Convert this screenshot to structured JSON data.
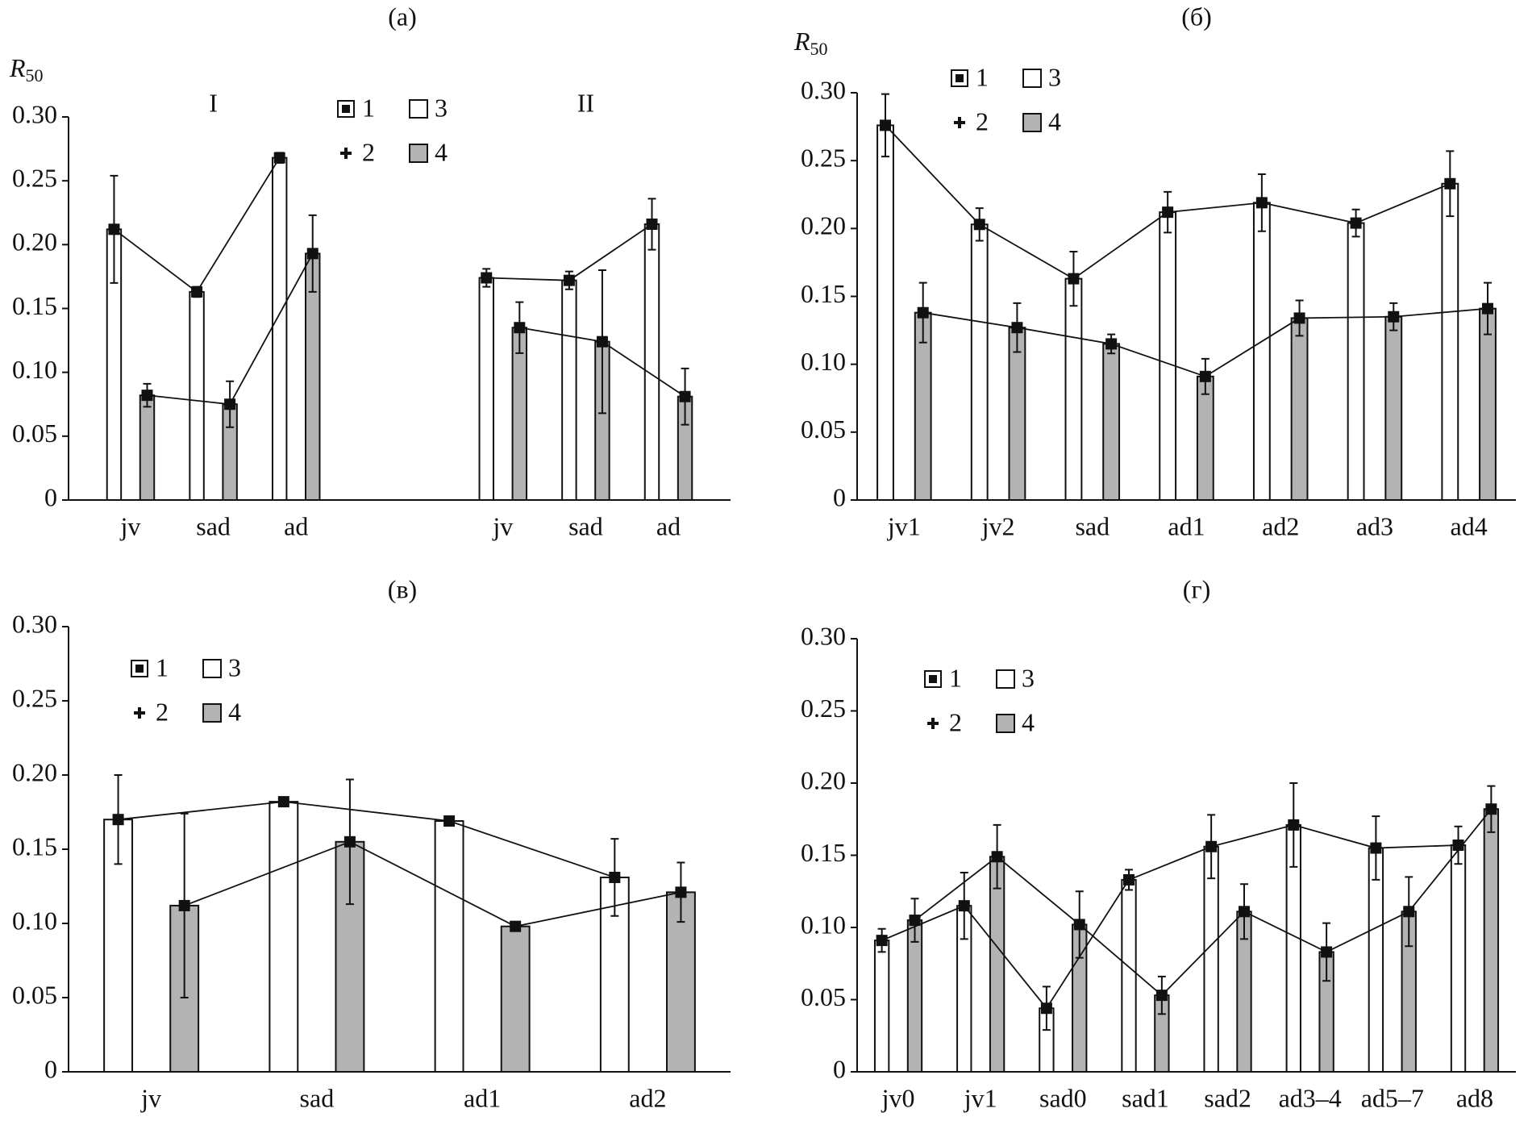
{
  "chart_data": [
    {
      "type": "bar",
      "title": "(a)",
      "ylabel": "R",
      "ylabel_sub": "50",
      "ylim": [
        0,
        0.3
      ],
      "yticks": [
        0,
        0.05,
        {
          "value": 0.1,
          "label": "0.10"
        },
        0.15,
        {
          "value": 0.2,
          "label": "0.20"
        },
        0.25,
        {
          "value": 0.3,
          "label": "0.30"
        }
      ],
      "series": [
        {
          "name": "3",
          "line_name": "1",
          "color": "#ffffff"
        },
        {
          "name": "4",
          "line_name": "2",
          "color": "#b3b3b3"
        }
      ],
      "groups": [
        {
          "label": "I",
          "categories": [
            "jv",
            "sad",
            "ad"
          ],
          "series": [
            {
              "values": [
                0.212,
                0.163,
                0.268
              ],
              "errors": [
                0.042,
                0.004,
                0.004
              ]
            },
            {
              "values": [
                0.082,
                0.075,
                0.193
              ],
              "errors": [
                0.009,
                0.018,
                0.03
              ]
            }
          ]
        },
        {
          "label": "II",
          "categories": [
            "jv",
            "sad",
            "ad"
          ],
          "series": [
            {
              "values": [
                0.174,
                0.172,
                0.216
              ],
              "errors": [
                0.007,
                0.007,
                0.02
              ]
            },
            {
              "values": [
                0.135,
                0.124,
                0.081
              ],
              "errors": [
                0.02,
                0.056,
                0.022
              ]
            }
          ]
        }
      ]
    },
    {
      "type": "bar",
      "title": "(б)",
      "ylabel": "R",
      "ylabel_sub": "50",
      "ylim": [
        0,
        0.3
      ],
      "yticks": [
        0,
        0.05,
        {
          "value": 0.1,
          "label": "0.10"
        },
        0.15,
        {
          "value": 0.2,
          "label": "0.20"
        },
        0.25,
        {
          "value": 0.3,
          "label": "0.30"
        }
      ],
      "series": [
        {
          "name": "3",
          "line_name": "1",
          "color": "#ffffff"
        },
        {
          "name": "4",
          "line_name": "2",
          "color": "#b3b3b3"
        }
      ],
      "groups": [
        {
          "categories": [
            "jv1",
            "jv2",
            "sad",
            "ad1",
            "ad2",
            "ad3",
            "ad4"
          ],
          "series": [
            {
              "values": [
                0.276,
                0.203,
                0.163,
                0.212,
                0.219,
                0.204,
                0.233
              ],
              "errors": [
                0.023,
                0.012,
                0.02,
                0.015,
                0.021,
                0.01,
                0.024
              ]
            },
            {
              "values": [
                0.138,
                0.127,
                0.115,
                0.091,
                0.134,
                0.135,
                0.141
              ],
              "errors": [
                0.022,
                0.018,
                0.007,
                0.013,
                0.013,
                0.01,
                0.019
              ]
            }
          ]
        }
      ]
    },
    {
      "type": "bar",
      "title": "(в)",
      "ylim": [
        0,
        0.3
      ],
      "yticks": [
        0,
        0.05,
        {
          "value": 0.1,
          "label": "0.10"
        },
        0.15,
        {
          "value": 0.2,
          "label": "0.20"
        },
        0.25,
        {
          "value": 0.3,
          "label": "0.30"
        }
      ],
      "series": [
        {
          "name": "3",
          "line_name": "1",
          "color": "#ffffff"
        },
        {
          "name": "4",
          "line_name": "2",
          "color": "#b3b3b3"
        }
      ],
      "groups": [
        {
          "categories": [
            "jv",
            "sad",
            "ad1",
            "ad2"
          ],
          "series": [
            {
              "values": [
                0.17,
                0.182,
                0.169,
                0.131
              ],
              "errors": [
                0.03,
                0.003,
                0.003,
                0.026
              ]
            },
            {
              "values": [
                0.112,
                0.155,
                0.098,
                0.121
              ],
              "errors": [
                0.062,
                0.042,
                0.002,
                0.02
              ]
            }
          ]
        }
      ]
    },
    {
      "type": "bar",
      "title": "(г)",
      "ylim": [
        0,
        0.3
      ],
      "yticks": [
        0,
        0.05,
        {
          "value": 0.1,
          "label": "0.10"
        },
        0.15,
        {
          "value": 0.2,
          "label": "0.20"
        },
        0.25,
        {
          "value": 0.3,
          "label": "0.30"
        }
      ],
      "series": [
        {
          "name": "3",
          "line_name": "1",
          "color": "#ffffff"
        },
        {
          "name": "4",
          "line_name": "2",
          "color": "#b3b3b3"
        }
      ],
      "groups": [
        {
          "categories": [
            "jv0",
            "jv1",
            "sad0",
            "sad1",
            "sad2",
            "ad3–4",
            "ad5–7",
            "ad8"
          ],
          "series": [
            {
              "values": [
                0.091,
                0.115,
                0.044,
                0.133,
                0.156,
                0.171,
                0.155,
                0.157
              ],
              "errors": [
                0.008,
                0.023,
                0.015,
                0.007,
                0.022,
                0.029,
                0.022,
                0.013
              ]
            },
            {
              "values": [
                0.105,
                0.149,
                0.102,
                0.053,
                0.111,
                0.083,
                0.111,
                0.182
              ],
              "errors": [
                0.015,
                0.022,
                0.023,
                0.013,
                0.019,
                0.02,
                0.024,
                0.016
              ]
            }
          ]
        }
      ]
    }
  ]
}
